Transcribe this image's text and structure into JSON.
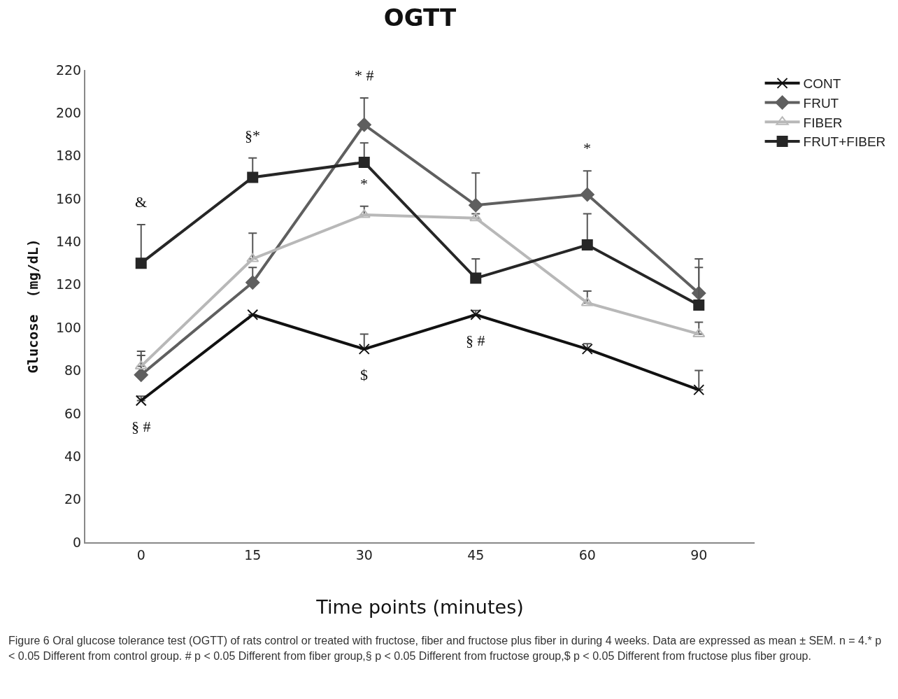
{
  "chart_data": {
    "type": "line",
    "title": "OGTT",
    "xlabel": "Time points (minutes)",
    "ylabel": "Glucose  (mg/dL)",
    "categories": [
      "0",
      "15",
      "30",
      "45",
      "60",
      "90"
    ],
    "ylim": [
      0,
      220
    ],
    "yticks": [
      0,
      20,
      40,
      60,
      80,
      100,
      120,
      140,
      160,
      180,
      200,
      220
    ],
    "grid": false,
    "legend": "top right",
    "line_style": "solid",
    "series": [
      {
        "name": "CONT",
        "color": "#111111",
        "marker": "cross",
        "values": [
          66,
          106,
          90,
          106,
          90,
          71
        ],
        "errors": [
          [
            66,
            68
          ],
          null,
          [
            90,
            97
          ],
          [
            106,
            108
          ],
          [
            90,
            92.5
          ],
          [
            71,
            80
          ]
        ]
      },
      {
        "name": "FRUT",
        "color": "#5f5f5f",
        "marker": "diamond",
        "values": [
          78,
          121,
          194.5,
          157,
          162,
          116
        ],
        "errors": [
          [
            78,
            87
          ],
          [
            121,
            128
          ],
          [
            194.5,
            207
          ],
          [
            157,
            172
          ],
          [
            162,
            173
          ],
          [
            116,
            132
          ]
        ]
      },
      {
        "name": "FIBER",
        "color": "#b8b8b8",
        "marker": "triangle",
        "values": [
          82,
          132,
          152.5,
          151,
          111.5,
          97
        ],
        "errors": [
          [
            82,
            89
          ],
          [
            132,
            144
          ],
          [
            152.5,
            156.5
          ],
          [
            151,
            153
          ],
          [
            111.5,
            117
          ],
          [
            97,
            102.5
          ]
        ]
      },
      {
        "name": "FRUT+FIBER",
        "color": "#262626",
        "marker": "square",
        "values": [
          130,
          170,
          177,
          123,
          138.5,
          110.5
        ],
        "errors": [
          [
            130,
            148
          ],
          [
            170,
            179
          ],
          [
            177,
            186
          ],
          [
            123,
            132
          ],
          [
            138.5,
            153
          ],
          [
            110.5,
            128
          ]
        ]
      }
    ],
    "annotations": [
      {
        "text": "&",
        "x": "0",
        "y": 148
      },
      {
        "text": "§ #",
        "x": "0",
        "y": 66
      },
      {
        "text": "§*",
        "x": "15",
        "y": 179
      },
      {
        "text": "* #",
        "x": "30",
        "y": 207
      },
      {
        "text": "*",
        "x": "30",
        "y": 156.5
      },
      {
        "text": "$",
        "x": "30",
        "y": 90
      },
      {
        "text": "§ #",
        "x": "45",
        "y": 106
      },
      {
        "text": "*",
        "x": "60",
        "y": 173
      },
      "Figure 6 Oral glucose tolerance test (OGTT) of rats control or treated with fructose, fiber and fructose plus fiber in during 4 weeks. Data are expressed as mean ± SEM. n = 4.* p < 0.05 Different from control group. # p < 0.05 Different from fiber group,§ p < 0.05 Different from fructose group,$ p < 0.05 Different from fructose plus fiber group."
    ]
  }
}
